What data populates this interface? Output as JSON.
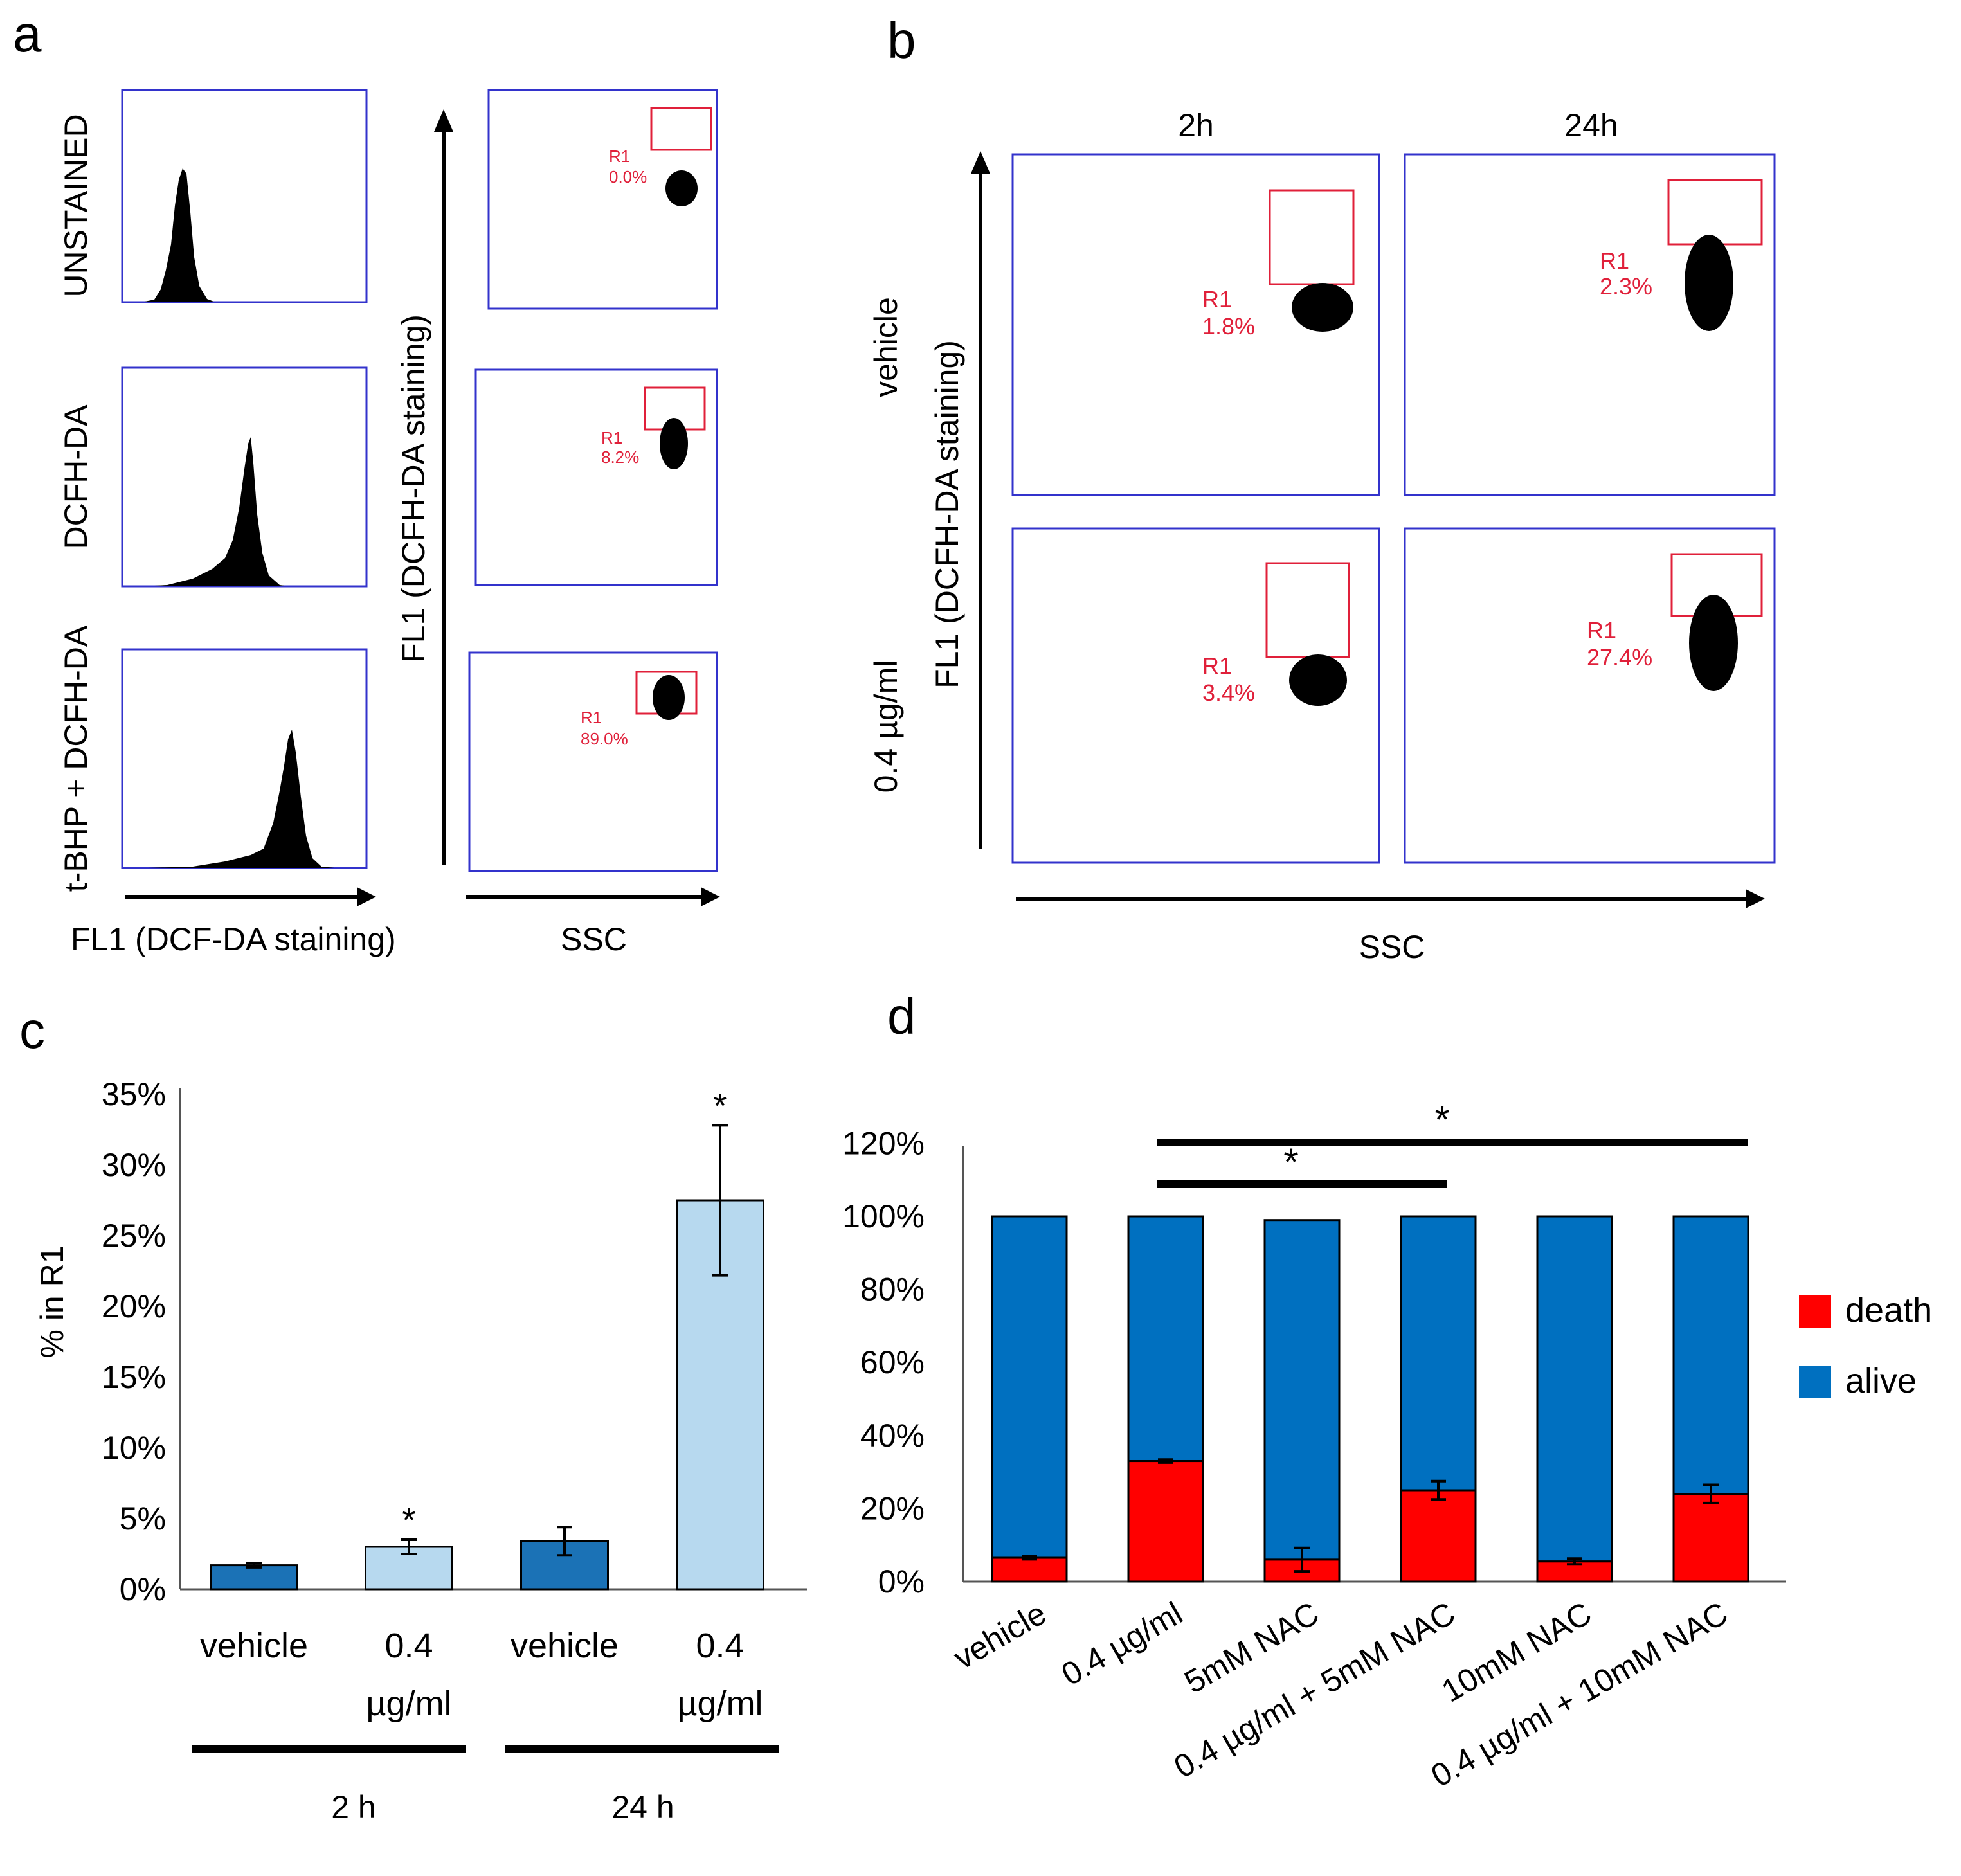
{
  "colors": {
    "dark_blue": "#1b72b6",
    "light_blue": "#b7d9ef",
    "death_red": "#ff0000",
    "alive_blue": "#0070c0",
    "gate_red": "#e0203a",
    "frame_blue": "#3333cc"
  },
  "panel_a": {
    "letter": "a",
    "row_labels": [
      "UNSTAINED",
      "DCFH-DA",
      "t-BHP + DCFH-DA"
    ],
    "hist_xlabel": "FL1 (DCF-DA staining)",
    "scatter_ylabel": "FL1 (DCFH-DA staining)",
    "scatter_xlabel": "SSC",
    "gates": [
      {
        "name": "R1",
        "pct": "0.0%"
      },
      {
        "name": "R1",
        "pct": "8.2%"
      },
      {
        "name": "R1",
        "pct": "89.0%"
      }
    ]
  },
  "panel_b": {
    "letter": "b",
    "col_labels": [
      "2h",
      "24h"
    ],
    "row_labels": [
      "vehicle",
      "0.4 µg/ml"
    ],
    "ylabel": "FL1 (DCFH-DA staining)",
    "xlabel": "SSC",
    "gates": [
      {
        "name": "R1",
        "pct": "1.8%"
      },
      {
        "name": "R1",
        "pct": "2.3%"
      },
      {
        "name": "R1",
        "pct": "3.4%"
      },
      {
        "name": "R1",
        "pct": "27.4%"
      }
    ]
  },
  "panel_c": {
    "letter": "c",
    "group_labels": [
      "2 h",
      "24 h"
    ],
    "chart_data": {
      "type": "bar",
      "ylabel": "% in R1",
      "ylim": [
        0,
        35
      ],
      "yticks": [
        "0%",
        "5%",
        "10%",
        "15%",
        "20%",
        "25%",
        "30%",
        "35%"
      ],
      "categories": [
        [
          "vehicle"
        ],
        [
          "0.4",
          "µg/ml"
        ],
        [
          "vehicle"
        ],
        [
          "0.4",
          "µg/ml"
        ]
      ],
      "values": [
        1.7,
        3.0,
        3.4,
        27.5
      ],
      "errors": [
        0.15,
        0.5,
        1.0,
        5.3
      ],
      "significance": [
        "",
        "*",
        "",
        "*"
      ]
    }
  },
  "panel_d": {
    "letter": "d",
    "significance": [
      "*",
      "*"
    ],
    "chart_data": {
      "type": "bar",
      "stacked": true,
      "ylim": [
        0,
        120
      ],
      "yticks": [
        "0%",
        "20%",
        "40%",
        "60%",
        "80%",
        "100%",
        "120%"
      ],
      "categories": [
        "vehicle",
        "0.4 µg/ml",
        "5mM NAC",
        "0.4 µg/ml + 5mM NAC",
        "10mM NAC",
        "0.4 µg/ml + 10mM NAC"
      ],
      "series": [
        {
          "name": "death",
          "values": [
            6.5,
            33,
            6,
            25,
            5.5,
            24
          ],
          "errors": [
            0.4,
            0.4,
            3.2,
            2.5,
            0.8,
            2.5
          ]
        },
        {
          "name": "alive",
          "values": [
            93.5,
            67,
            93,
            75,
            94.5,
            76
          ]
        }
      ],
      "legend": "right"
    }
  }
}
